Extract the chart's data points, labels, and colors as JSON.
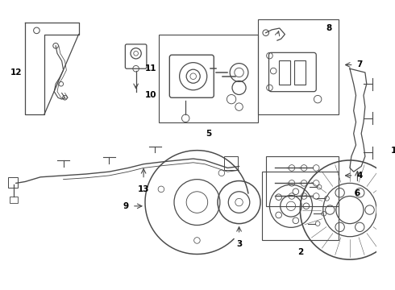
{
  "title": "",
  "bg_color": "#ffffff",
  "line_color": "#4a4a4a",
  "label_color": "#000000",
  "figsize": [
    4.9,
    3.6
  ],
  "dpi": 100
}
